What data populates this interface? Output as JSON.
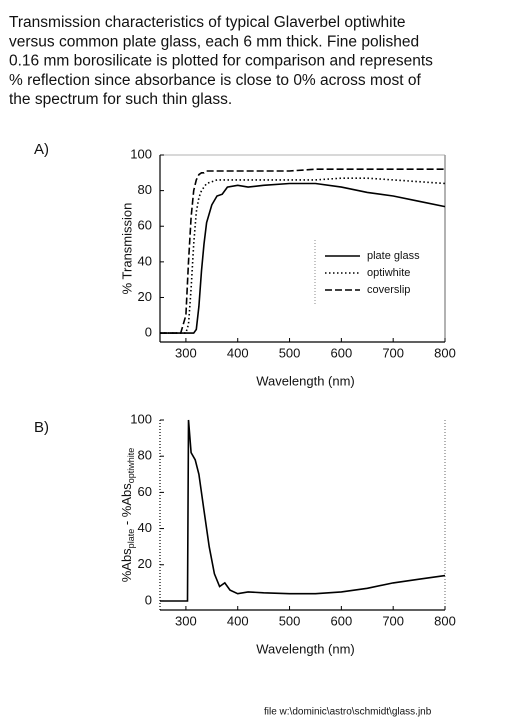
{
  "caption_lines": [
    "Transmission characteristics of typical Glaverbel optiwhite",
    "versus common plate glass, each 6 mm thick. Fine polished",
    "0.16 mm borosilicate is plotted for comparison and represents",
    "% reflection since absorbance is close to 0% across most of",
    "the spectrum for such thin glass."
  ],
  "footer": "file  w:\\dominic\\astro\\schmidt\\glass.jnb",
  "chart_data": [
    {
      "type": "line",
      "panel_label": "A)",
      "xlabel": "Wavelength  (nm)",
      "ylabel": "% Transmission",
      "x": [
        250,
        290,
        300,
        305,
        310,
        315,
        320,
        325,
        330,
        335,
        340,
        350,
        360,
        370,
        380,
        400,
        420,
        450,
        500,
        550,
        600,
        650,
        700,
        750,
        800
      ],
      "series": [
        {
          "name": "plate glass",
          "color": "#000000",
          "linestyle": "solid",
          "values": [
            0,
            0,
            0,
            0,
            0,
            0,
            2,
            15,
            35,
            50,
            62,
            72,
            77,
            78,
            82,
            83,
            82,
            83,
            84,
            84,
            82,
            79,
            77,
            74,
            71
          ]
        },
        {
          "name": "optiwhite",
          "color": "#000000",
          "linestyle": "dotted",
          "values": [
            0,
            0,
            0,
            5,
            25,
            50,
            68,
            76,
            80,
            82,
            84,
            85,
            86,
            86,
            86,
            86,
            86,
            86,
            86,
            86,
            87,
            87,
            86,
            85,
            84
          ]
        },
        {
          "name": "coverslip",
          "color": "#000000",
          "linestyle": "dashed",
          "values": [
            0,
            0,
            10,
            40,
            65,
            80,
            86,
            89,
            90,
            90,
            91,
            91,
            91,
            91,
            91,
            91,
            91,
            91,
            91,
            92,
            92,
            92,
            92,
            92,
            92
          ]
        }
      ],
      "xlim": [
        250,
        800
      ],
      "xticks": [
        300,
        400,
        500,
        600,
        700,
        800
      ],
      "ylim": [
        -5,
        100
      ],
      "yticks": [
        0,
        20,
        40,
        60,
        80,
        100
      ],
      "legend": "right"
    },
    {
      "type": "line",
      "panel_label": "B)",
      "xlabel": "Wavelength  (nm)",
      "ylabel_parts": [
        "%Abs",
        "plate",
        " - %Abs",
        "optiwhite"
      ],
      "x": [
        250,
        303,
        305,
        310,
        318,
        325,
        335,
        345,
        355,
        365,
        375,
        385,
        400,
        420,
        450,
        500,
        550,
        600,
        650,
        700,
        750,
        800
      ],
      "series": [
        {
          "color": "#000000",
          "linestyle": "solid",
          "values": [
            0,
            0,
            100,
            82,
            78,
            70,
            50,
            30,
            15,
            8,
            10,
            6,
            4,
            5,
            4.5,
            4,
            4,
            5,
            7,
            10,
            12,
            14
          ]
        }
      ],
      "xlim": [
        250,
        800
      ],
      "xticks": [
        300,
        400,
        500,
        600,
        700,
        800
      ],
      "ylim": [
        -5,
        100
      ],
      "yticks": [
        0,
        20,
        40,
        60,
        80,
        100
      ]
    }
  ]
}
